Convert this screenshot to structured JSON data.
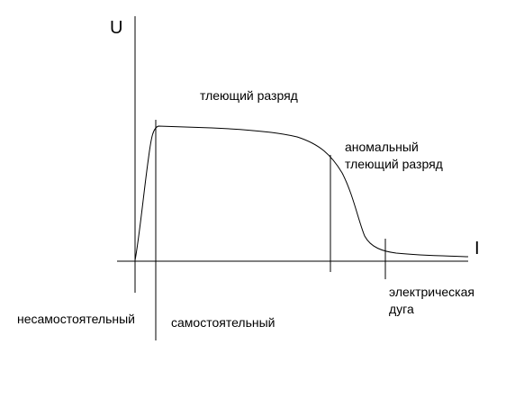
{
  "axes": {
    "y_label": "U",
    "x_label": "I"
  },
  "regions": {
    "glow": "тлеющий разряд",
    "abnormal_line1": "аномальный",
    "abnormal_line2": "тлеющий разряд",
    "arc_line1": "электрическая",
    "arc_line2": "дуга",
    "non_self": "несамостоятельный",
    "self": "самостоятельный"
  },
  "colors": {
    "line": "#000000",
    "background": "#ffffff"
  }
}
